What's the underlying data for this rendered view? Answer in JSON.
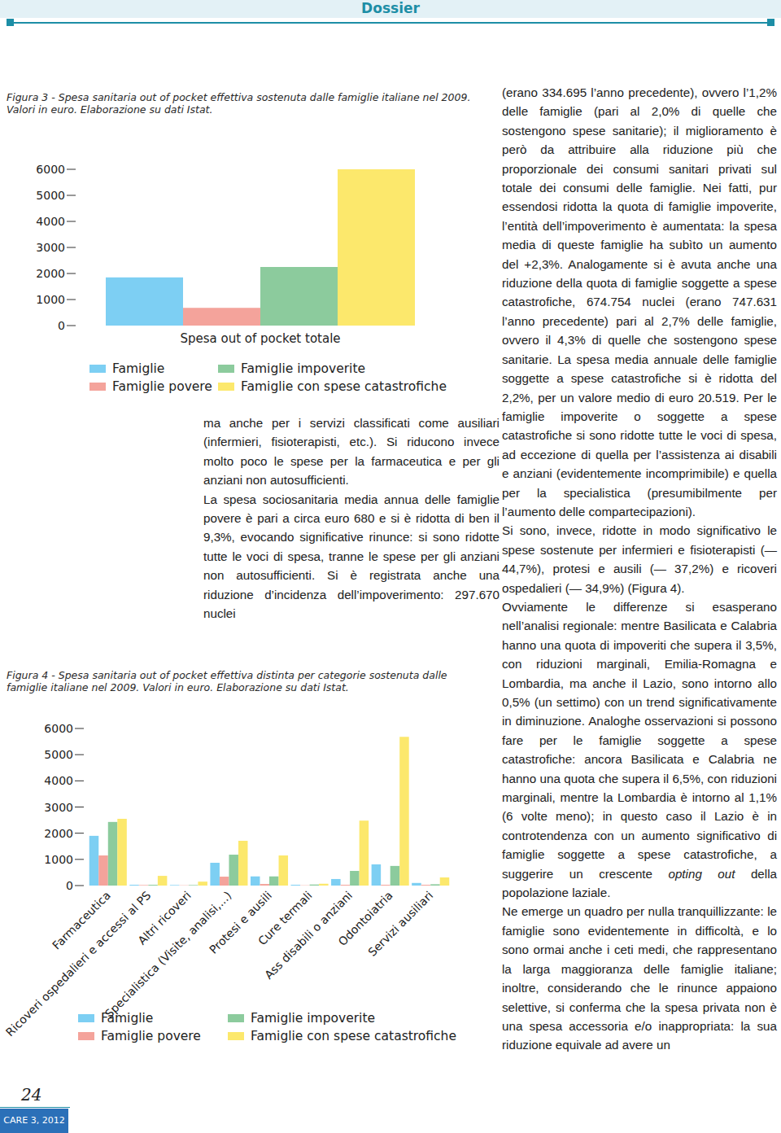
{
  "header": {
    "section": "Dossier"
  },
  "chart_data": [
    {
      "type": "bar",
      "title": "Figura 3 - Spesa sanitaria out of pocket effettiva sostenuta dalle famiglie italiane nel 2009. Valori in euro. Elaborazione su dati Istat.",
      "categories": [
        "Spesa out of pocket totale"
      ],
      "series": [
        {
          "name": "Famiglie",
          "color": "#7dcff3",
          "values": [
            1850
          ]
        },
        {
          "name": "Famiglie povere",
          "color": "#f4a39b",
          "values": [
            680
          ]
        },
        {
          "name": "Famiglie impoverite",
          "color": "#8ccb9d",
          "values": [
            2250
          ]
        },
        {
          "name": "Famiglie con spese catastrofiche",
          "color": "#fce86c",
          "values": [
            6000
          ]
        }
      ],
      "ylim": [
        0,
        6000
      ],
      "yticks": [
        0,
        1000,
        2000,
        3000,
        4000,
        5000,
        6000
      ],
      "grid": false,
      "legend": "bottom"
    },
    {
      "type": "bar",
      "title": "Figura 4 - Spesa sanitaria out of pocket effettiva distinta per categorie sostenuta dalle famiglie italiane nel 2009. Valori in euro. Elaborazione su dati Istat.",
      "categories": [
        "Farmaceutica",
        "Ricoveri ospedalieri e accessi al PS",
        "Altri ricoveri",
        "Specialistica (Visite, analisi,...)",
        "Protesi e ausili",
        "Cure termali",
        "Ass disabili o anziani",
        "Odontoiatria",
        "Servizi ausiliari"
      ],
      "series": [
        {
          "name": "Famiglie",
          "color": "#7dcff3",
          "values": [
            1900,
            30,
            20,
            870,
            350,
            30,
            250,
            810,
            100
          ]
        },
        {
          "name": "Famiglie povere",
          "color": "#f4a39b",
          "values": [
            1150,
            20,
            10,
            340,
            60,
            10,
            30,
            30,
            30
          ]
        },
        {
          "name": "Famiglie impoverite",
          "color": "#8ccb9d",
          "values": [
            2430,
            30,
            20,
            1180,
            350,
            40,
            560,
            750,
            50
          ]
        },
        {
          "name": "Famiglie con spese catastrofiche",
          "color": "#fce86c",
          "values": [
            2550,
            370,
            150,
            1710,
            1150,
            70,
            2480,
            5680,
            310
          ]
        }
      ],
      "ylim": [
        0,
        6000
      ],
      "yticks": [
        0,
        1000,
        2000,
        3000,
        4000,
        5000,
        6000
      ],
      "grid": false,
      "legend": "bottom"
    }
  ],
  "columns": {
    "middle": [
      "ma anche per i servizi classificati come ausiliari (infermieri, fisioterapisti, etc.). Si riducono invece molto poco le spese per la farmaceutica e per gli anziani non autosufficienti.",
      "La spesa sociosanitaria media annua delle famiglie povere è pari a circa euro 680 e si è ridotta di ben il 9,3%, evocando significative rinunce: si sono ridotte tutte le voci di spesa, tranne le spese per gli anziani non autosufficienti. Si è registrata anche una riduzione d’incidenza dell’impoverimento: 297.670 nuclei"
    ],
    "right": [
      "(erano 334.695 l’anno precedente), ovvero l’1,2% delle famiglie (pari al 2,0% di quelle che sostengono spese sanitarie); il miglioramento è però da attribuire alla riduzione più che proporzionale dei consumi sanitari privati sul totale dei consumi delle famiglie. Nei fatti, pur essendosi ridotta la quota di famiglie impoverite, l’entità dell’impoverimento è aumentata: la spesa media di queste famiglie ha subìto un aumento del +2,3%. Analogamente si è avuta anche una riduzione della quota di famiglie soggette a spese catastrofiche, 674.754 nuclei (erano 747.631 l’anno precedente) pari al 2,7% delle famiglie, ovvero il 4,3% di quelle che sostengono spese sanitarie. La spesa media annuale delle famiglie soggette a spese catastrofiche si è ridotta del 2,2%, per un valore medio di euro 20.519. Per le famiglie impoverite o soggette a spese catastrofiche si sono ridotte tutte le voci di spesa, ad eccezione di quella per l’assistenza ai disabili e anziani (evidentemente incomprimibile) e quella per la specialistica (presumibilmente per l’aumento delle compartecipazioni).",
      "Si sono, invece, ridotte in modo significativo le spese sostenute per infermieri e fisioterapisti (— 44,7%), protesi e ausili (— 37,2%) e ricoveri ospedalieri (— 34,9%) (Figura 4).",
      [
        "Ovviamente le differenze si esasperano nell’analisi regionale: mentre Basilicata e Calabria hanno una quota di impoveriti che supera il 3,5%, con riduzioni marginali, Emilia-Romagna e Lombardia, ma anche il Lazio, sono intorno allo 0,5% (un settimo) con un trend significativamente in diminuzione. Analoghe osservazioni si possono fare per le famiglie soggette a spese catastrofiche: ancora Basilicata e Calabria ne hanno una quota che supera il 6,5%, con riduzioni marginali, mentre la Lombardia è intorno al 1,1% (6 volte meno); in questo caso il Lazio è in controtendenza con un aumento significativo di famiglie soggette a spese catastrofiche, a suggerire un crescente ",
        {
          "em": "opting out"
        },
        " della popolazione laziale."
      ],
      "Ne emerge un quadro per nulla tranquillizzante: le famiglie sono evidentemente in difficoltà, e lo sono ormai anche i ceti medi, che rappresentano la larga maggioranza delle famiglie italiane; inoltre, considerando che le rinunce appaiono selettive, si conferma che la spesa privata non è una spesa accessoria e/o inappropriata: la sua riduzione equivale ad avere un"
    ]
  },
  "footer": {
    "page": "24",
    "journal": "CARE 3, 2012"
  }
}
